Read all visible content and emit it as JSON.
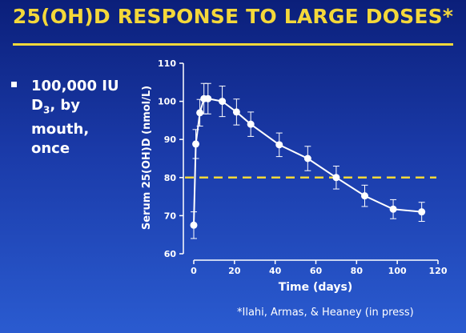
{
  "title": "25(OH)D RESPONSE TO LARGE DOSES*",
  "bullet": {
    "line1": "100,000 IU",
    "line2_prefix": "D",
    "line2_sub": "3",
    "line2_suffix": ", by",
    "line3": "mouth,",
    "line4": "once"
  },
  "credit": "*Ilahi, Armas, & Heaney (in press)",
  "colors": {
    "title": "#f4d83a",
    "reference_line": "#f4d83a",
    "series": "#ffffff"
  },
  "chart_data": {
    "type": "line",
    "xlabel": "Time (days)",
    "ylabel": "Serum 25(OH)D (nmol/L)",
    "xlim": [
      0,
      120
    ],
    "ylim": [
      60,
      110
    ],
    "xticks": [
      0,
      20,
      40,
      60,
      80,
      100,
      120
    ],
    "yticks": [
      60,
      70,
      80,
      90,
      100,
      110
    ],
    "grid": false,
    "reference_line": {
      "y": 80,
      "style": "dashed"
    },
    "series": [
      {
        "x": [
          0,
          1,
          3,
          5,
          7,
          14,
          21,
          28,
          42,
          56,
          70,
          84,
          98,
          112
        ],
        "y": [
          67.5,
          88.8,
          97,
          100.7,
          100.7,
          100,
          97.2,
          94,
          88.6,
          85,
          80,
          75.2,
          71.7,
          71
        ],
        "error": [
          3.5,
          3.8,
          3.5,
          4,
          4,
          4,
          3.4,
          3.2,
          3.1,
          3.2,
          3,
          2.8,
          2.5,
          2.5
        ]
      }
    ]
  }
}
